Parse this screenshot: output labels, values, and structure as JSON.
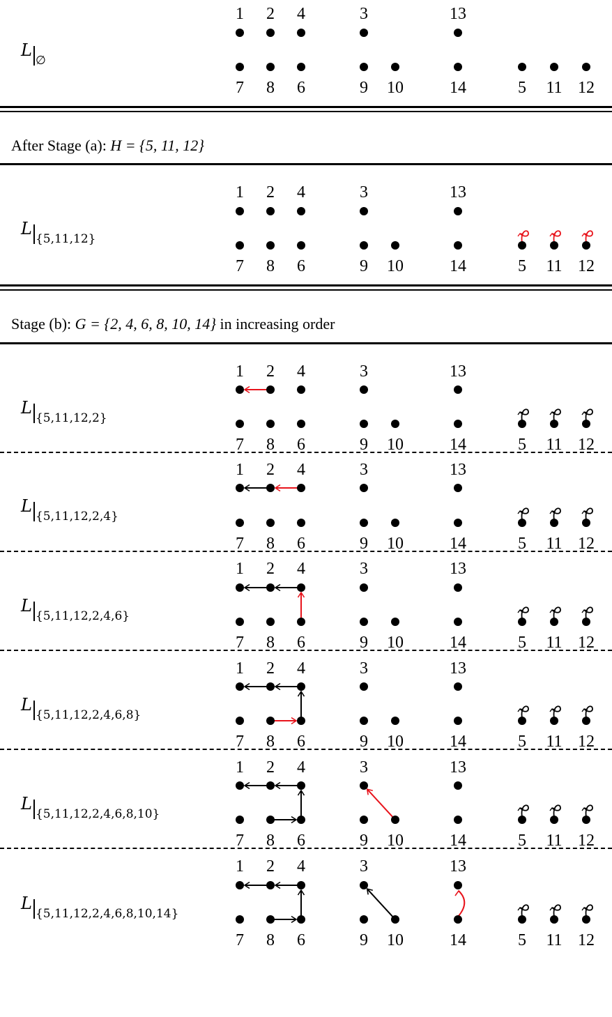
{
  "nodes": [
    "1",
    "2",
    "4",
    "3",
    "13",
    "7",
    "8",
    "6",
    "9",
    "10",
    "14",
    "5",
    "11",
    "12"
  ],
  "rows": [
    {
      "label": "L",
      "sub": "∅",
      "tree_edges": [],
      "new_edges": [],
      "loops": [],
      "new_loops": []
    },
    {
      "label": "L",
      "sub": "{5,11,12}",
      "tree_edges": [],
      "new_edges": [],
      "loops": [],
      "new_loops": [
        "5",
        "11",
        "12"
      ]
    },
    {
      "label": "L",
      "sub": "{5,11,12,2}",
      "tree_edges": [],
      "new_edges": [
        [
          "2",
          "1"
        ]
      ],
      "loops": [
        "5",
        "11",
        "12"
      ],
      "new_loops": []
    },
    {
      "label": "L",
      "sub": "{5,11,12,2,4}",
      "tree_edges": [
        [
          "2",
          "1"
        ]
      ],
      "new_edges": [
        [
          "4",
          "2"
        ]
      ],
      "loops": [
        "5",
        "11",
        "12"
      ],
      "new_loops": []
    },
    {
      "label": "L",
      "sub": "{5,11,12,2,4,6}",
      "tree_edges": [
        [
          "2",
          "1"
        ],
        [
          "4",
          "2"
        ]
      ],
      "new_edges": [
        [
          "6",
          "4"
        ]
      ],
      "loops": [
        "5",
        "11",
        "12"
      ],
      "new_loops": []
    },
    {
      "label": "L",
      "sub": "{5,11,12,2,4,6,8}",
      "tree_edges": [
        [
          "2",
          "1"
        ],
        [
          "4",
          "2"
        ],
        [
          "6",
          "4"
        ]
      ],
      "new_edges": [
        [
          "8",
          "6"
        ]
      ],
      "loops": [
        "5",
        "11",
        "12"
      ],
      "new_loops": []
    },
    {
      "label": "L",
      "sub": "{5,11,12,2,4,6,8,10}",
      "tree_edges": [
        [
          "2",
          "1"
        ],
        [
          "4",
          "2"
        ],
        [
          "6",
          "4"
        ],
        [
          "8",
          "6"
        ]
      ],
      "new_edges": [
        [
          "10",
          "3"
        ]
      ],
      "loops": [
        "5",
        "11",
        "12"
      ],
      "new_loops": []
    },
    {
      "label": "L",
      "sub": "{5,11,12,2,4,6,8,10,14}",
      "tree_edges": [
        [
          "2",
          "1"
        ],
        [
          "4",
          "2"
        ],
        [
          "6",
          "4"
        ],
        [
          "8",
          "6"
        ],
        [
          "10",
          "3"
        ]
      ],
      "new_edges": [
        [
          "14",
          "13"
        ]
      ],
      "loops": [
        "5",
        "11",
        "12"
      ],
      "new_loops": []
    }
  ],
  "stages": {
    "a": {
      "text": "After Stage (a): ",
      "math": "H = {5, 11, 12}"
    },
    "b": {
      "text": "Stage (b): ",
      "math": "G = {2, 4, 6, 8, 10, 14}",
      "suffix": " in increasing order"
    }
  },
  "colors": {
    "highlight": "#e8141c",
    "ink": "#000000"
  }
}
